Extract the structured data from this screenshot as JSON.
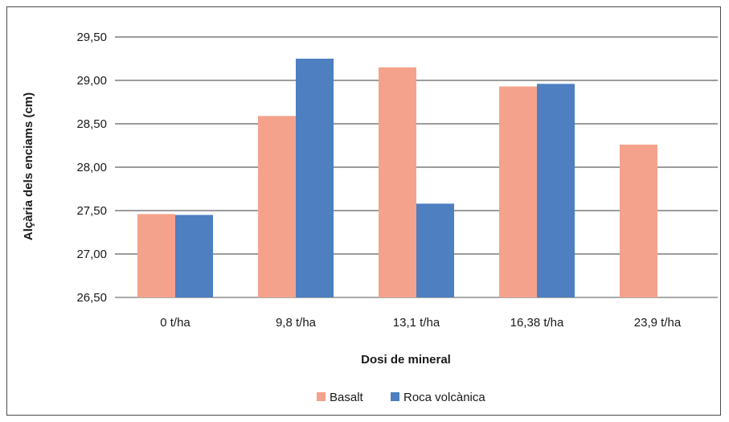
{
  "chart_data": {
    "type": "bar",
    "title": "",
    "xlabel": "Dosi de mineral",
    "ylabel": "Alçària dels enciams (cm)",
    "categories": [
      "0 t/ha",
      "9,8 t/ha",
      "13,1 t/ha",
      "16,38 t/ha",
      "23,9 t/ha"
    ],
    "series": [
      {
        "name": "Basalt",
        "color": "#f5a28c",
        "values": [
          27.46,
          28.59,
          29.15,
          28.93,
          28.26
        ]
      },
      {
        "name": "Roca volcànica",
        "color": "#4d7fc1",
        "values": [
          27.45,
          29.25,
          27.58,
          28.96,
          null
        ]
      }
    ],
    "ylim": [
      26.5,
      29.5
    ],
    "yticks": [
      "26,50",
      "27,00",
      "27,50",
      "28,00",
      "28,50",
      "29,00",
      "29,50"
    ],
    "grid": true,
    "legend_position": "bottom"
  }
}
